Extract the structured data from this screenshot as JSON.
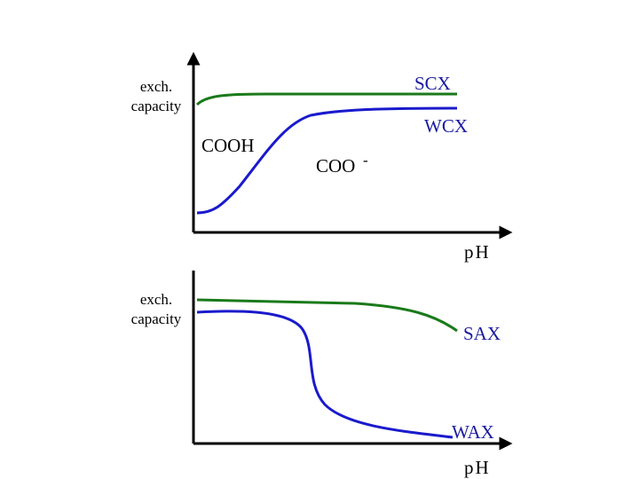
{
  "top_panel": {
    "y_label": [
      "exch.",
      "capacity"
    ],
    "x_label": "pH",
    "curves": [
      "SCX",
      "WCX"
    ],
    "annotations": {
      "acid": "COOH",
      "base": "COO",
      "base_charge": "-"
    }
  },
  "bottom_panel": {
    "y_label": [
      "exch.",
      "capacity"
    ],
    "x_label": "pH",
    "curves": [
      "SAX",
      "WAX"
    ]
  }
}
